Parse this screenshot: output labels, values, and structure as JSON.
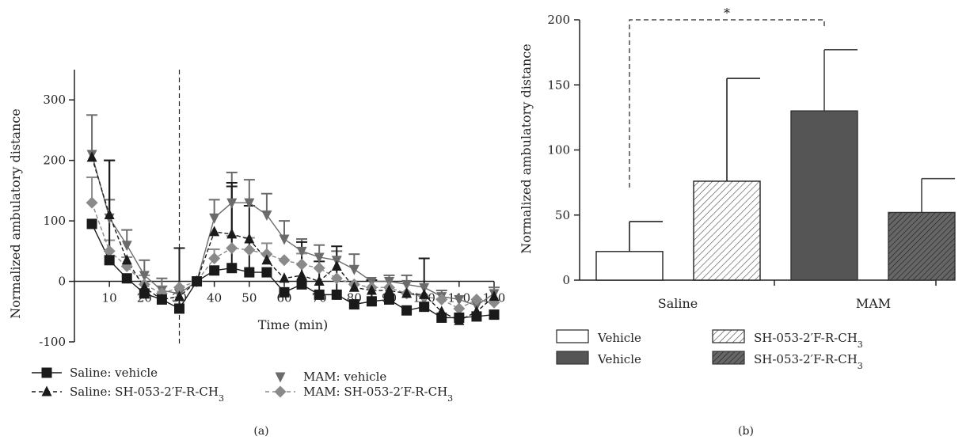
{
  "chart_data": [
    {
      "type": "line",
      "panel_label": "(a)",
      "xlabel": "Time (min)",
      "ylabel": "Normalized ambulatory distance",
      "xlim": [
        0,
        120
      ],
      "ylim": [
        -100,
        350
      ],
      "xticks": [
        10,
        20,
        30,
        40,
        50,
        60,
        70,
        80,
        90,
        100,
        110,
        120
      ],
      "yticks": [
        -100,
        0,
        100,
        200,
        300
      ],
      "vline_x": 30,
      "x": [
        5,
        10,
        15,
        20,
        25,
        30,
        35,
        40,
        45,
        50,
        55,
        60,
        65,
        70,
        75,
        80,
        85,
        90,
        95,
        100,
        105,
        110,
        115,
        120
      ],
      "series": [
        {
          "name": "Saline: vehicle",
          "color": "#1a1a1a",
          "marker": "square",
          "dash": "solid",
          "values": [
            95,
            35,
            5,
            -20,
            -30,
            -45,
            0,
            18,
            22,
            15,
            15,
            -18,
            -5,
            -22,
            -22,
            -38,
            -33,
            -30,
            -48,
            -42,
            -60,
            -60,
            -58,
            -55
          ],
          "errors": [
            0,
            165,
            0,
            0,
            0,
            100,
            0,
            0,
            135,
            110,
            0,
            0,
            70,
            55,
            80,
            0,
            35,
            0,
            0,
            80,
            0,
            0,
            0,
            0
          ]
        },
        {
          "name": "Saline: SH-053-2′F-R-CH3",
          "color": "#1a1a1a",
          "marker": "triangle-up",
          "dash": "dashed",
          "values": [
            205,
            110,
            35,
            -10,
            -30,
            -25,
            0,
            82,
            78,
            70,
            35,
            5,
            10,
            0,
            25,
            -10,
            -15,
            -15,
            -20,
            -22,
            -50,
            -65,
            -50,
            -25
          ],
          "errors": [
            0,
            90,
            0,
            0,
            0,
            0,
            0,
            0,
            85,
            0,
            0,
            0,
            0,
            0,
            0,
            0,
            0,
            0,
            0,
            0,
            0,
            0,
            0,
            0
          ]
        },
        {
          "name": "MAM: vehicle",
          "color": "#6b6b6b",
          "marker": "triangle-down",
          "dash": "solid",
          "values": [
            210,
            105,
            60,
            10,
            -15,
            -20,
            0,
            105,
            130,
            130,
            110,
            70,
            50,
            40,
            35,
            20,
            0,
            0,
            -5,
            -10,
            -25,
            -30,
            -40,
            -20
          ],
          "errors": [
            65,
            30,
            25,
            25,
            20,
            0,
            0,
            30,
            50,
            38,
            35,
            30,
            20,
            20,
            15,
            25,
            0,
            10,
            15,
            0,
            10,
            0,
            0,
            10
          ]
        },
        {
          "name": "MAM: SH-053-2′F-R-CH3",
          "color": "#8a8a8a",
          "marker": "diamond",
          "dash": "dashed",
          "values": [
            130,
            50,
            25,
            -5,
            -20,
            -10,
            0,
            38,
            55,
            52,
            45,
            35,
            28,
            22,
            5,
            -5,
            -10,
            -10,
            -20,
            -25,
            -30,
            -45,
            -30,
            -35
          ],
          "errors": [
            42,
            18,
            15,
            15,
            12,
            0,
            0,
            15,
            20,
            20,
            18,
            0,
            18,
            0,
            0,
            0,
            0,
            0,
            0,
            0,
            0,
            0,
            0,
            0
          ]
        }
      ]
    },
    {
      "type": "bar",
      "panel_label": "(b)",
      "ylabel": "Normalized ambulatory distance",
      "ylim": [
        0,
        200
      ],
      "yticks": [
        0,
        50,
        100,
        150,
        200
      ],
      "group_labels": [
        "Saline",
        "MAM"
      ],
      "significance": "*",
      "bars": [
        {
          "group": "Saline",
          "legend": "Vehicle",
          "value": 22,
          "error": 23,
          "fill": "open"
        },
        {
          "group": "Saline",
          "legend": "SH-053-2′F-R-CH3",
          "value": 76,
          "error": 79,
          "fill": "hatch-light"
        },
        {
          "group": "MAM",
          "legend": "Vehicle",
          "value": 130,
          "error": 47,
          "fill": "solid"
        },
        {
          "group": "MAM",
          "legend": "SH-053-2′F-R-CH3",
          "value": 52,
          "error": 26,
          "fill": "hatch-dark"
        }
      ]
    }
  ]
}
